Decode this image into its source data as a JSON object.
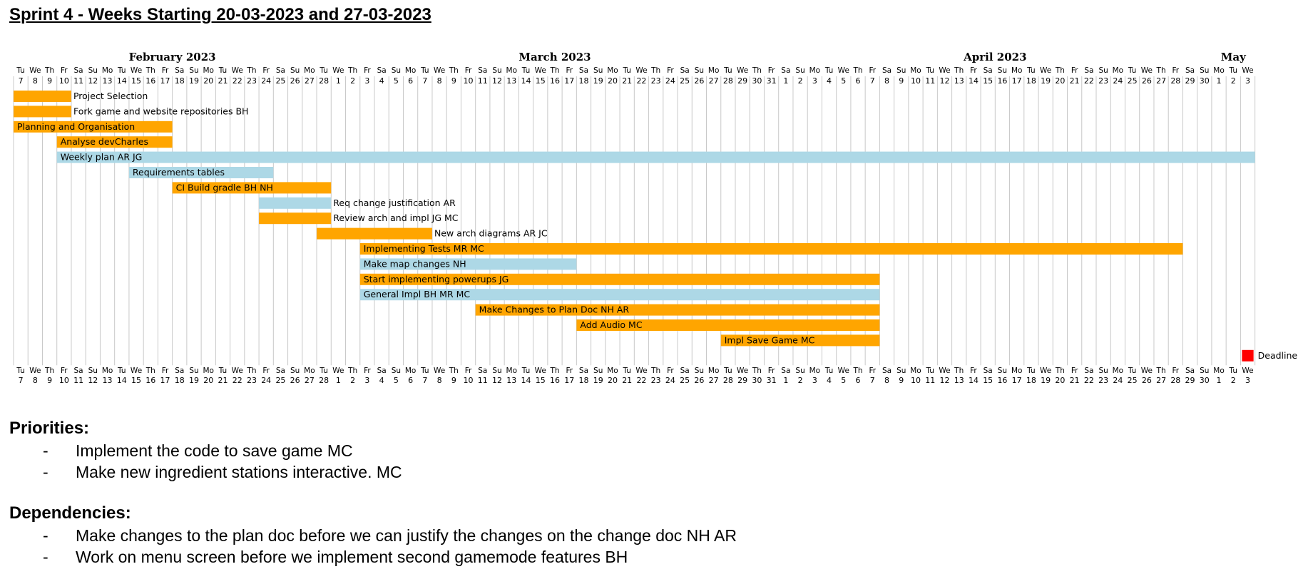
{
  "title": "Sprint 4 - Weeks Starting 20-03-2023 and 27-03-2023",
  "chart_data": {
    "type": "gantt",
    "start_date": "2023-02-07",
    "months": [
      {
        "label": "February 2023",
        "start": "2023-02-07",
        "end": "2023-02-28"
      },
      {
        "label": "March 2023",
        "start": "2023-03-01",
        "end": "2023-03-31"
      },
      {
        "label": "April 2023",
        "start": "2023-04-01",
        "end": "2023-04-30"
      },
      {
        "label": "May",
        "start": "2023-05-01",
        "end": "2023-05-03"
      }
    ],
    "day_names": [
      "Tu",
      "We",
      "Th",
      "Fr",
      "Sa",
      "Su",
      "Mo"
    ],
    "tasks": [
      {
        "name": "Project Selection",
        "start": "2023-02-07",
        "end": "2023-02-10",
        "color": "orange",
        "label_position": "outside"
      },
      {
        "name": "Fork game and website repositories BH",
        "start": "2023-02-07",
        "end": "2023-02-10",
        "color": "orange",
        "label_position": "outside"
      },
      {
        "name": "Planning and Organisation",
        "start": "2023-02-07",
        "end": "2023-02-17",
        "color": "orange",
        "label_position": "inside"
      },
      {
        "name": "Analyse devCharles",
        "start": "2023-02-10",
        "end": "2023-02-17",
        "color": "orange",
        "label_position": "inside"
      },
      {
        "name": "Weekly plan AR JG",
        "start": "2023-02-10",
        "end": "2023-05-03",
        "color": "lightblue",
        "label_position": "inside"
      },
      {
        "name": "Requirements tables",
        "start": "2023-02-15",
        "end": "2023-02-24",
        "color": "lightblue",
        "label_position": "inside"
      },
      {
        "name": "CI Build gradle BH NH",
        "start": "2023-02-18",
        "end": "2023-02-28",
        "color": "orange",
        "label_position": "inside"
      },
      {
        "name": "Req change justification AR",
        "start": "2023-02-24",
        "end": "2023-02-28",
        "color": "lightblue",
        "label_position": "outside"
      },
      {
        "name": "Review arch and impl JG MC",
        "start": "2023-02-24",
        "end": "2023-02-28",
        "color": "orange",
        "label_position": "outside"
      },
      {
        "name": "New arch diagrams AR JC",
        "start": "2023-02-28",
        "end": "2023-03-07",
        "color": "orange",
        "label_position": "outside"
      },
      {
        "name": "Implementing Tests MR MC",
        "start": "2023-03-03",
        "end": "2023-04-28",
        "color": "orange",
        "label_position": "inside"
      },
      {
        "name": "Make map changes NH",
        "start": "2023-03-03",
        "end": "2023-03-17",
        "color": "lightblue",
        "label_position": "inside"
      },
      {
        "name": "Start implementing powerups JG",
        "start": "2023-03-03",
        "end": "2023-04-07",
        "color": "orange",
        "label_position": "inside"
      },
      {
        "name": "General Impl BH MR MC",
        "start": "2023-03-03",
        "end": "2023-04-07",
        "color": "lightblue",
        "label_position": "inside"
      },
      {
        "name": "Make Changes to Plan Doc NH AR",
        "start": "2023-03-11",
        "end": "2023-04-07",
        "color": "orange",
        "label_position": "inside"
      },
      {
        "name": "Add Audio MC",
        "start": "2023-03-18",
        "end": "2023-04-07",
        "color": "orange",
        "label_position": "inside"
      },
      {
        "name": "Impl Save Game MC",
        "start": "2023-03-28",
        "end": "2023-04-07",
        "color": "orange",
        "label_position": "inside"
      }
    ],
    "milestones": [
      {
        "name": "Deadline",
        "date": "2023-05-03",
        "color": "red"
      }
    ],
    "colors": {
      "orange": "#ffa500",
      "lightblue": "#add8e6",
      "red": "#ff0000"
    }
  },
  "priorities": {
    "heading": "Priorities:",
    "items": [
      "Implement the code to save game MC",
      "Make new ingredient stations interactive. MC"
    ]
  },
  "dependencies": {
    "heading": "Dependencies:",
    "items": [
      "Make changes to the plan doc before we can justify the changes on the change doc NH AR",
      "Work on menu screen before we implement second gamemode features BH"
    ]
  },
  "bullet": "-"
}
